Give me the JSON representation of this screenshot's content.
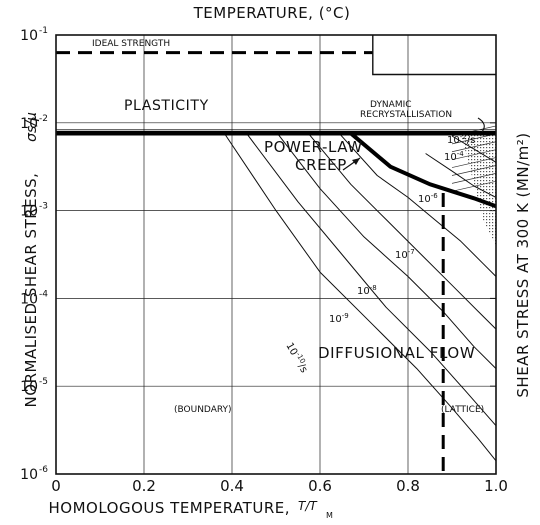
{
  "chart_data": {
    "type": "line",
    "title": "TEMPERATURE, (°C)",
    "xlabel": "HOMOLOGOUS TEMPERATURE,",
    "xlabel_symbol": "T/T",
    "xlabel_subscript": "M",
    "ylabel": "NORMALISED SHEAR STRESS,",
    "ylabel_symbol": "σs/μ",
    "ylabel_right": "SHEAR STRESS AT 300 K (MN/m²)",
    "xlim": [
      0,
      1.0
    ],
    "ylim_log10": [
      -6,
      -1
    ],
    "yscale": "log",
    "grid": true,
    "x_ticks": [
      "0",
      "0.2",
      "0.4",
      "0.6",
      "0.8",
      "1.0"
    ],
    "y_ticks": [
      {
        "base": "10",
        "exp": "-1"
      },
      {
        "base": "10",
        "exp": "-2"
      },
      {
        "base": "10",
        "exp": "-3"
      },
      {
        "base": "10",
        "exp": "-4"
      },
      {
        "base": "10",
        "exp": "-5"
      },
      {
        "base": "10",
        "exp": "-6"
      }
    ],
    "regions": {
      "ideal_strength": "IDEAL STRENGTH",
      "plasticity": "PLASTICITY",
      "dynamic": "DYNAMIC",
      "recrystallisation": "RECRYSTALLISATION",
      "power_law_1": "POWER-LAW",
      "power_law_2": "CREEP",
      "diffusional_flow": "DIFFUSIONAL FLOW",
      "boundary": "(BOUNDARY)",
      "lattice": "(LATTICE)"
    },
    "rate_labels": [
      {
        "base": "10",
        "exp": "-10",
        "unit": "/s"
      },
      {
        "base": "10",
        "exp": "-9",
        "unit": ""
      },
      {
        "base": "10",
        "exp": "-8",
        "unit": ""
      },
      {
        "base": "10",
        "exp": "-7",
        "unit": ""
      },
      {
        "base": "10",
        "exp": "-6",
        "unit": ""
      },
      {
        "base": "10",
        "exp": "-4",
        "unit": ""
      },
      {
        "base": "10",
        "exp": "-2",
        "unit": "/s"
      }
    ],
    "boundaries": {
      "ideal_strength": {
        "x": [
          0,
          0.72
        ],
        "y_log10": [
          -1.2,
          -1.2
        ]
      },
      "plasticity": {
        "x": [
          0,
          1.0
        ],
        "y_log10": [
          -2.12,
          -2.12
        ]
      },
      "power_law_creep": {
        "x": [
          0.67,
          0.76,
          0.85,
          0.9,
          0.95,
          1.0
        ],
        "y_log10": [
          -2.12,
          -2.5,
          -2.7,
          -2.78,
          -2.86,
          -2.95
        ]
      },
      "lattice_boundary": {
        "x": [
          0.88,
          0.88
        ],
        "y_log10": [
          -2.8,
          -6
        ]
      }
    },
    "strain_rate_contours": [
      {
        "rate": "1e-10",
        "x": [
          0.38,
          0.5,
          0.6,
          0.72,
          0.82,
          0.9,
          0.96,
          1.0
        ],
        "y_log10": [
          -2.1,
          -3.0,
          -3.7,
          -4.3,
          -4.8,
          -5.25,
          -5.6,
          -5.85
        ]
      },
      {
        "rate": "1e-9",
        "x": [
          0.43,
          0.55,
          0.65,
          0.75,
          0.85,
          0.93,
          1.0
        ],
        "y_log10": [
          -2.1,
          -2.9,
          -3.5,
          -4.1,
          -4.6,
          -5.05,
          -5.45
        ]
      },
      {
        "rate": "1e-8",
        "x": [
          0.5,
          0.6,
          0.7,
          0.8,
          0.88,
          0.95,
          1.0
        ],
        "y_log10": [
          -2.1,
          -2.75,
          -3.3,
          -3.75,
          -4.15,
          -4.55,
          -4.8
        ]
      },
      {
        "rate": "1e-7",
        "x": [
          0.57,
          0.67,
          0.75,
          0.83,
          0.9,
          0.96,
          1.0
        ],
        "y_log10": [
          -2.1,
          -2.7,
          -3.1,
          -3.5,
          -3.85,
          -4.15,
          -4.35
        ]
      },
      {
        "rate": "1e-6",
        "x": [
          0.64,
          0.73,
          0.8,
          0.86,
          0.92,
          0.97,
          1.0
        ],
        "y_log10": [
          -2.1,
          -2.6,
          -2.85,
          -3.1,
          -3.35,
          -3.6,
          -3.75
        ]
      },
      {
        "rate": "1e-4",
        "x": [
          0.84,
          0.9,
          0.95,
          1.0
        ],
        "y_log10": [
          -2.35,
          -2.55,
          -2.72,
          -2.85
        ]
      },
      {
        "rate": "1e-2",
        "x": [
          0.9,
          0.95,
          1.0
        ],
        "y_log10": [
          -2.15,
          -2.3,
          -2.45
        ]
      }
    ]
  }
}
